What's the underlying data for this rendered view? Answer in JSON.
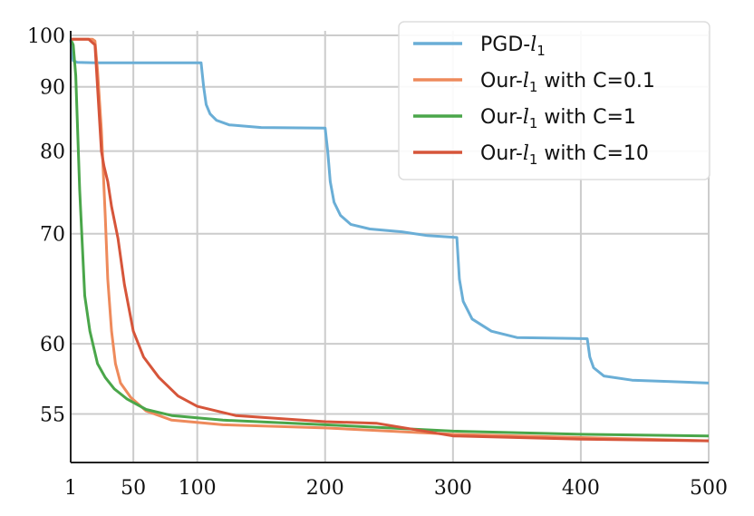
{
  "chart_data": {
    "type": "line",
    "title": "",
    "xlabel": "",
    "ylabel": "",
    "xlim": [
      1,
      500
    ],
    "ylim": [
      52,
      101
    ],
    "y_scale": "reciprocal",
    "grid": true,
    "legend_position": "top-right",
    "x_ticks": [
      1,
      50,
      100,
      200,
      300,
      400,
      500
    ],
    "y_ticks": [
      55,
      60,
      70,
      80,
      90,
      100
    ],
    "series": [
      {
        "name": "PGD-",
        "subscript_label": "l",
        "subscript": "1",
        "color": "#6aaed6",
        "points": [
          [
            1,
            99
          ],
          [
            3,
            94.8
          ],
          [
            6,
            94.5
          ],
          [
            20,
            94.4
          ],
          [
            60,
            94.4
          ],
          [
            103,
            94.4
          ],
          [
            105,
            90
          ],
          [
            107,
            87
          ],
          [
            110,
            85.5
          ],
          [
            115,
            84.5
          ],
          [
            125,
            83.8
          ],
          [
            150,
            83.4
          ],
          [
            200,
            83.3
          ],
          [
            202,
            80
          ],
          [
            204,
            76
          ],
          [
            207,
            73.5
          ],
          [
            212,
            72
          ],
          [
            220,
            71
          ],
          [
            235,
            70.5
          ],
          [
            260,
            70.2
          ],
          [
            280,
            69.8
          ],
          [
            303,
            69.6
          ],
          [
            305,
            65.5
          ],
          [
            308,
            63.5
          ],
          [
            315,
            62
          ],
          [
            330,
            61
          ],
          [
            350,
            60.5
          ],
          [
            405,
            60.4
          ],
          [
            407,
            59
          ],
          [
            410,
            58.2
          ],
          [
            418,
            57.6
          ],
          [
            440,
            57.3
          ],
          [
            470,
            57.2
          ],
          [
            500,
            57.1
          ]
        ]
      },
      {
        "name": "Our-",
        "subscript_label": "l",
        "subscript": "1",
        "suffix": " with C=0.1",
        "color": "#ee8a5b",
        "points": [
          [
            1,
            99.2
          ],
          [
            12,
            99.2
          ],
          [
            18,
            99.2
          ],
          [
            20,
            98.8
          ],
          [
            22,
            93
          ],
          [
            25,
            83
          ],
          [
            28,
            72
          ],
          [
            30,
            65.5
          ],
          [
            33,
            61
          ],
          [
            36,
            58.5
          ],
          [
            40,
            57.1
          ],
          [
            48,
            56.1
          ],
          [
            60,
            55.2
          ],
          [
            80,
            54.6
          ],
          [
            120,
            54.3
          ],
          [
            200,
            54.1
          ],
          [
            300,
            53.7
          ],
          [
            400,
            53.5
          ],
          [
            500,
            53.3
          ]
        ]
      },
      {
        "name": "Our-",
        "subscript_label": "l",
        "subscript": "1",
        "suffix": " with C=1",
        "color": "#4aa64a",
        "points": [
          [
            1,
            99.2
          ],
          [
            3,
            98
          ],
          [
            5,
            92
          ],
          [
            8,
            75
          ],
          [
            12,
            64
          ],
          [
            16,
            61
          ],
          [
            22,
            58.5
          ],
          [
            28,
            57.5
          ],
          [
            35,
            56.7
          ],
          [
            45,
            56
          ],
          [
            60,
            55.3
          ],
          [
            80,
            54.9
          ],
          [
            120,
            54.6
          ],
          [
            200,
            54.3
          ],
          [
            300,
            53.9
          ],
          [
            400,
            53.7
          ],
          [
            500,
            53.6
          ]
        ]
      },
      {
        "name": "Our-",
        "subscript_label": "l",
        "subscript": "1",
        "suffix": " with C=10",
        "color": "#d6553a",
        "points": [
          [
            1,
            99.2
          ],
          [
            15,
            99.2
          ],
          [
            20,
            98
          ],
          [
            22,
            90
          ],
          [
            25,
            80
          ],
          [
            27,
            78
          ],
          [
            30,
            76
          ],
          [
            33,
            73
          ],
          [
            38,
            69.5
          ],
          [
            43,
            65
          ],
          [
            50,
            61
          ],
          [
            58,
            59
          ],
          [
            70,
            57.5
          ],
          [
            85,
            56.2
          ],
          [
            100,
            55.5
          ],
          [
            130,
            54.9
          ],
          [
            200,
            54.5
          ],
          [
            240,
            54.4
          ],
          [
            300,
            53.6
          ],
          [
            400,
            53.4
          ],
          [
            500,
            53.3
          ]
        ]
      }
    ]
  }
}
